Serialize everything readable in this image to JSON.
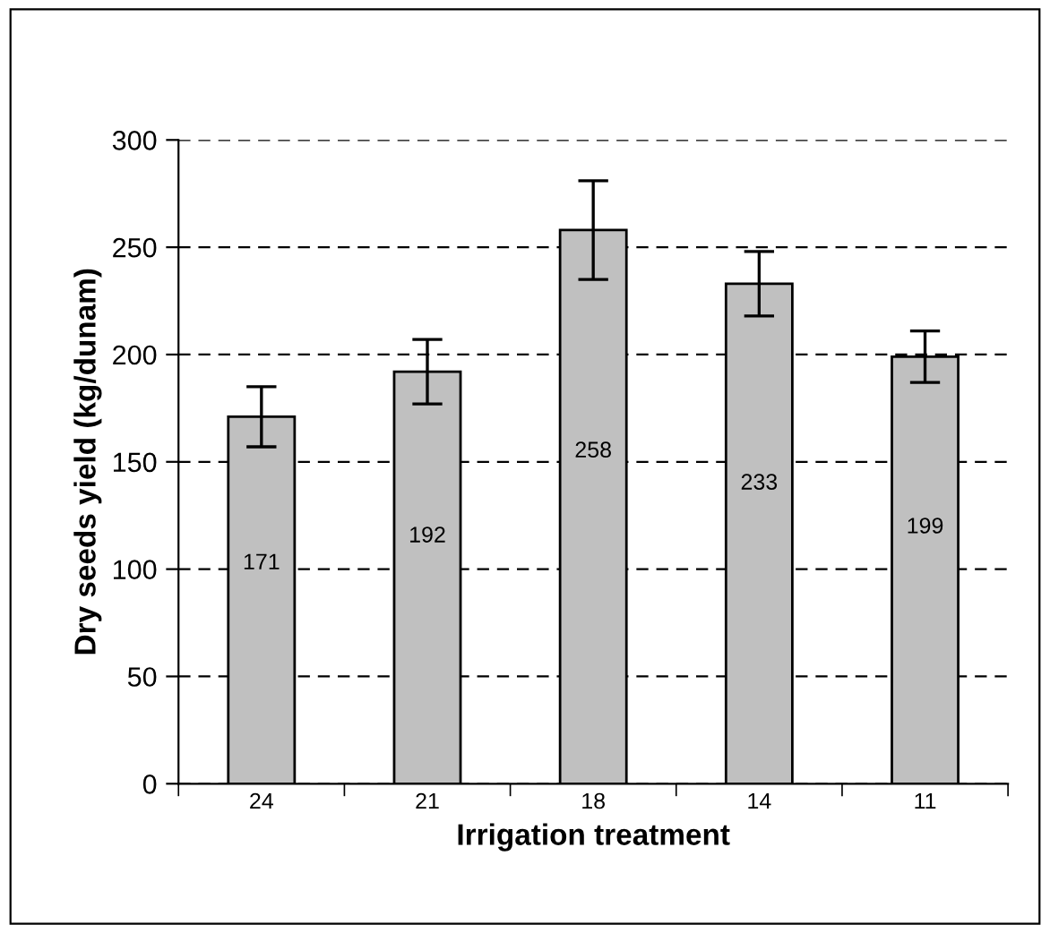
{
  "chart_data": {
    "type": "bar",
    "xlabel": "Irrigation treatment",
    "ylabel": "Dry seeds yield (kg/dunam)",
    "categories": [
      "24",
      "21",
      "18",
      "14",
      "11"
    ],
    "values": [
      171,
      192,
      258,
      233,
      199
    ],
    "errors": [
      14,
      15,
      23,
      15,
      12
    ],
    "color": "#c0c0c0",
    "ylim": [
      0,
      300
    ],
    "yticks": [
      0,
      50,
      100,
      150,
      200,
      250,
      300
    ],
    "grid": "y",
    "data_labels": true
  }
}
